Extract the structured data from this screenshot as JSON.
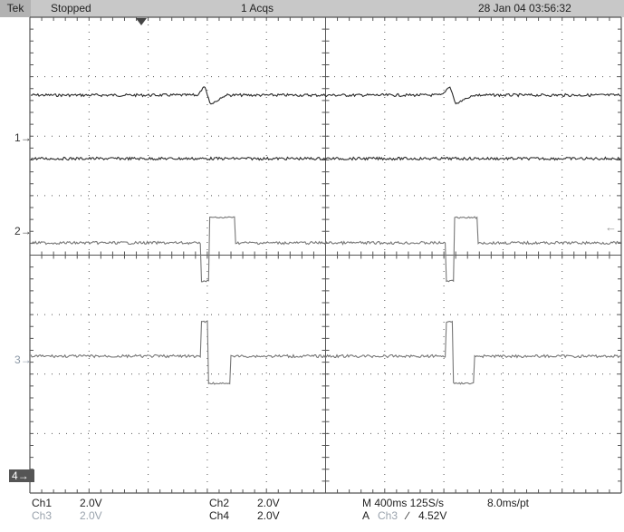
{
  "header": {
    "brand": "Tek",
    "status": "Stopped",
    "acquisitions": "1 Acqs",
    "datetime": "28 Jan 04 03:56:32"
  },
  "channel_markers": {
    "ch1": "1",
    "ch2": "2",
    "ch3": "3",
    "ch4": "4"
  },
  "readouts": {
    "ch1": {
      "label": "Ch1",
      "scale": "2.0V"
    },
    "ch2": {
      "label": "Ch2",
      "scale": "2.0V"
    },
    "ch3": {
      "label": "Ch3",
      "scale": "2.0V"
    },
    "ch4": {
      "label": "Ch4",
      "scale": "2.0V"
    },
    "timebase": "M 400ms 125S/s",
    "record": "8.0ms/pt",
    "trigger": {
      "prefix": "A",
      "source": "Ch3",
      "slope": "∕",
      "level": "4.52V"
    }
  },
  "colors": {
    "grid": "#555555",
    "trace_dark": "#2a2a2a",
    "trace_light": "#777777",
    "dim_text": "#9aa3ad",
    "header_bg": "#c8c8c8"
  }
}
